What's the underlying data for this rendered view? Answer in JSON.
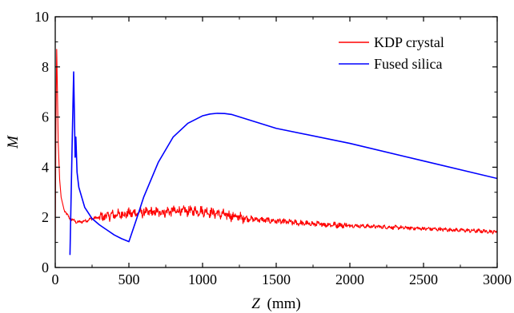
{
  "chart_data": {
    "type": "line",
    "title": "",
    "xlabel": "Z",
    "xlabel_unit": "(mm)",
    "ylabel": "M",
    "xlim": [
      0,
      3000
    ],
    "ylim": [
      0,
      10
    ],
    "x_ticks": [
      0,
      500,
      1000,
      1500,
      2000,
      2500,
      3000
    ],
    "y_ticks": [
      0,
      2,
      4,
      6,
      8,
      10
    ],
    "grid": false,
    "legend_position": "top-right",
    "series": [
      {
        "name": "KDP crystal",
        "color": "#ff0000",
        "noisy": true,
        "x": [
          0,
          5,
          10,
          15,
          20,
          30,
          40,
          60,
          80,
          100,
          150,
          200,
          250,
          300,
          350,
          400,
          500,
          600,
          700,
          800,
          900,
          1000,
          1100,
          1200,
          1300,
          1500,
          1700,
          1900,
          2100,
          2300,
          2500,
          2700,
          2900,
          3000
        ],
        "y": [
          1.0,
          6.0,
          8.7,
          7.0,
          5.0,
          3.5,
          2.8,
          2.3,
          2.1,
          1.95,
          1.8,
          1.85,
          1.95,
          2.0,
          2.05,
          2.1,
          2.15,
          2.2,
          2.2,
          2.25,
          2.25,
          2.25,
          2.15,
          2.05,
          1.95,
          1.85,
          1.75,
          1.7,
          1.65,
          1.6,
          1.55,
          1.5,
          1.45,
          1.42
        ]
      },
      {
        "name": "Fused silica",
        "color": "#0000ff",
        "noisy": false,
        "x": [
          100,
          115,
          125,
          135,
          140,
          148,
          160,
          180,
          200,
          250,
          300,
          350,
          400,
          450,
          500,
          550,
          600,
          700,
          800,
          900,
          1000,
          1050,
          1100,
          1150,
          1200,
          1500,
          2000,
          2500,
          3000
        ],
        "y": [
          0.5,
          5.0,
          7.8,
          4.4,
          5.2,
          3.8,
          3.2,
          2.8,
          2.4,
          1.95,
          1.7,
          1.5,
          1.3,
          1.15,
          1.03,
          1.9,
          2.8,
          4.2,
          5.2,
          5.75,
          6.05,
          6.12,
          6.15,
          6.14,
          6.1,
          5.55,
          4.95,
          4.25,
          3.55
        ]
      }
    ]
  }
}
